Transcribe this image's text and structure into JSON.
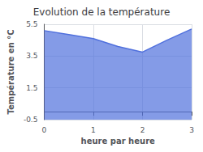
{
  "chart_data": {
    "type": "area",
    "title": "Evolution de la température",
    "xlabel": "heure par heure",
    "ylabel": "Température en °C",
    "x": [
      0,
      0.5,
      1.0,
      1.5,
      2.0,
      2.5,
      3.0
    ],
    "values": [
      5.1,
      4.85,
      4.6,
      4.1,
      3.75,
      4.5,
      5.2
    ],
    "xlim": [
      0,
      3
    ],
    "xticks": [
      0,
      1,
      2,
      3
    ],
    "ylim": [
      -0.5,
      5.5
    ],
    "yticks": [
      -0.5,
      1.5,
      3.5,
      5.5
    ],
    "grid": true
  }
}
